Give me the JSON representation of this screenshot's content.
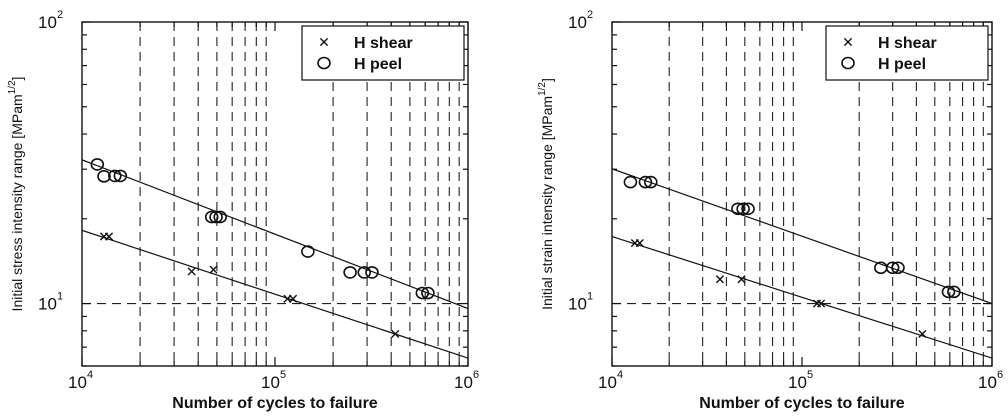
{
  "chart_data": [
    {
      "type": "scatter",
      "xscale": "log",
      "yscale": "log",
      "xlim": [
        10000,
        1000000
      ],
      "ylim": [
        6,
        100
      ],
      "xlabel": "Number of cycles to failure",
      "ylabel": "Initial stress intensity range [MPam",
      "ylabel_sup": "1/2",
      "ylabel_end": "]",
      "x_ticks": [
        {
          "value": 10000,
          "base": "10",
          "exp": "4"
        },
        {
          "value": 100000,
          "base": "10",
          "exp": "5"
        },
        {
          "value": 1000000,
          "base": "10",
          "exp": "6"
        }
      ],
      "y_ticks": [
        {
          "value": 10,
          "base": "10",
          "exp": "1"
        },
        {
          "value": 100,
          "base": "10",
          "exp": "2"
        }
      ],
      "grid": {
        "x": "minor dashed",
        "y": "decade dashed"
      },
      "legend_position": "top-right",
      "series": [
        {
          "name": "H shear",
          "marker": "x",
          "points": [
            [
              13000,
              17.3
            ],
            [
              13800,
              17.3
            ],
            [
              37000,
              13.0
            ],
            [
              48000,
              13.2
            ],
            [
              116000,
              10.4
            ],
            [
              124000,
              10.4
            ],
            [
              420000,
              7.8
            ]
          ],
          "fit": [
            [
              10000,
              18.2
            ],
            [
              1000000,
              6.4
            ]
          ]
        },
        {
          "name": "H peel",
          "marker": "o",
          "points": [
            [
              12000,
              31.2
            ],
            [
              13000,
              28.3
            ],
            [
              14800,
              28.4
            ],
            [
              15800,
              28.4
            ],
            [
              47000,
              20.3
            ],
            [
              49500,
              20.3
            ],
            [
              52000,
              20.3
            ],
            [
              148000,
              15.3
            ],
            [
              245000,
              12.9
            ],
            [
              290000,
              12.9
            ],
            [
              318000,
              12.9
            ],
            [
              580000,
              10.9
            ],
            [
              620000,
              10.9
            ]
          ],
          "fit": [
            [
              10000,
              32.4
            ],
            [
              1000000,
              9.6
            ]
          ]
        }
      ]
    },
    {
      "type": "scatter",
      "xscale": "log",
      "yscale": "log",
      "xlim": [
        10000,
        1000000
      ],
      "ylim": [
        6,
        100
      ],
      "xlabel": "Number of cycles to failure",
      "ylabel": "Initial strain intensity range [MPam",
      "ylabel_sup": "1/2",
      "ylabel_end": "]",
      "x_ticks": [
        {
          "value": 10000,
          "base": "10",
          "exp": "4"
        },
        {
          "value": 100000,
          "base": "10",
          "exp": "5"
        },
        {
          "value": 1000000,
          "base": "10",
          "exp": "6"
        }
      ],
      "y_ticks": [
        {
          "value": 10,
          "base": "10",
          "exp": "1"
        },
        {
          "value": 100,
          "base": "10",
          "exp": "2"
        }
      ],
      "grid": {
        "x": "minor dashed",
        "y": "decade dashed"
      },
      "legend_position": "top-right",
      "series": [
        {
          "name": "H shear",
          "marker": "x",
          "points": [
            [
              13200,
              16.4
            ],
            [
              14000,
              16.4
            ],
            [
              37000,
              12.2
            ],
            [
              48000,
              12.2
            ],
            [
              120000,
              10.0
            ],
            [
              126000,
              10.0
            ],
            [
              430000,
              7.8
            ]
          ],
          "fit": [
            [
              10000,
              17.3
            ],
            [
              1000000,
              6.4
            ]
          ]
        },
        {
          "name": "H peel",
          "marker": "o",
          "points": [
            [
              12500,
              27.0
            ],
            [
              15000,
              27.0
            ],
            [
              16000,
              27.0
            ],
            [
              46000,
              21.7
            ],
            [
              49000,
              21.7
            ],
            [
              52000,
              21.7
            ],
            [
              260000,
              13.4
            ],
            [
              300000,
              13.4
            ],
            [
              320000,
              13.4
            ],
            [
              590000,
              11.0
            ],
            [
              630000,
              11.0
            ]
          ],
          "fit": [
            [
              10000,
              30.1
            ],
            [
              1000000,
              10.0
            ]
          ]
        }
      ]
    }
  ]
}
